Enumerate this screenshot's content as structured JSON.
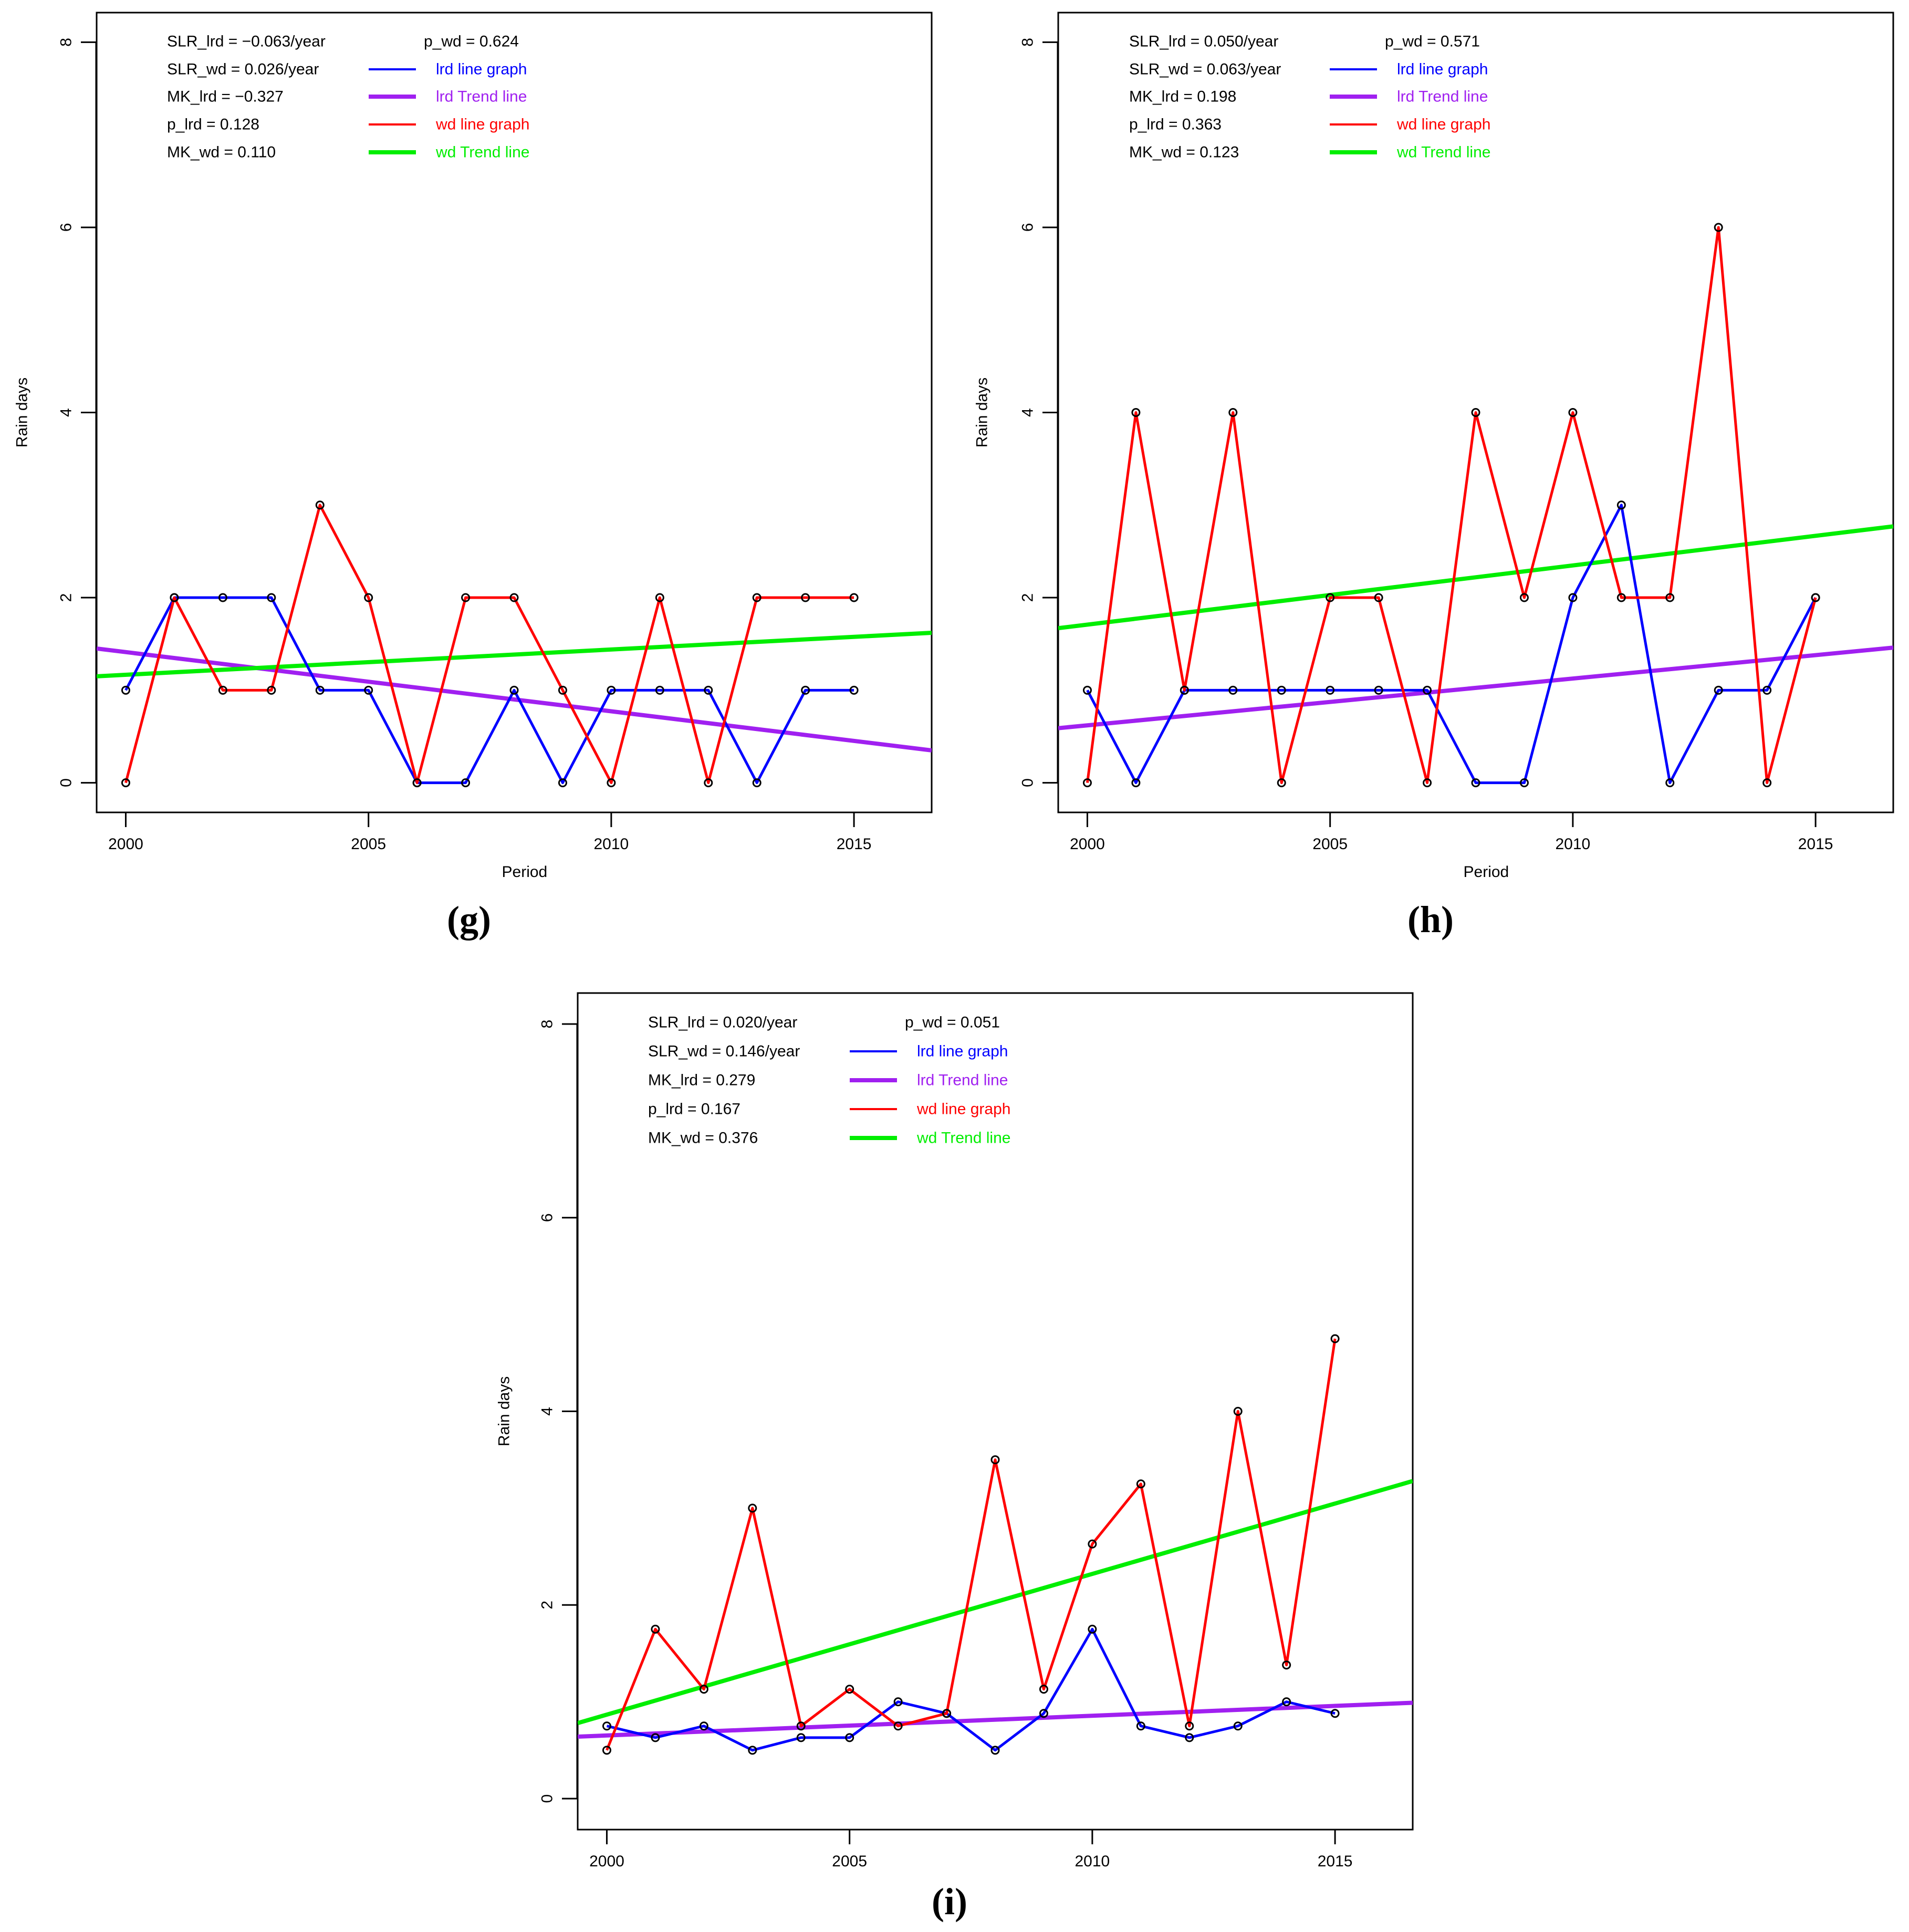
{
  "colors": {
    "lrd_line": "#0000ff",
    "lrd_trend": "#a020f0",
    "wd_line": "#ff0000",
    "wd_trend": "#00ee00",
    "text": "#000000",
    "marker": "#000000"
  },
  "chart_data": [
    {
      "type": "line",
      "panel_label": "(g)",
      "title": "",
      "xlabel": "Period",
      "ylabel": "Rain days",
      "xlim": [
        1999.4,
        2016.6
      ],
      "ylim": [
        -0.32,
        8.32
      ],
      "x_ticks": [
        2000,
        2005,
        2010,
        2015
      ],
      "y_ticks": [
        0,
        2,
        4,
        6,
        8
      ],
      "x": [
        2000,
        2001,
        2002,
        2003,
        2004,
        2005,
        2006,
        2007,
        2008,
        2009,
        2010,
        2011,
        2012,
        2013,
        2014,
        2015
      ],
      "series": [
        {
          "name": "lrd line graph",
          "color_key": "lrd_line",
          "values": [
            1,
            2,
            2,
            2,
            1,
            1,
            0,
            0,
            1,
            0,
            1,
            1,
            1,
            0,
            1,
            1
          ]
        },
        {
          "name": "wd line graph",
          "color_key": "wd_line",
          "values": [
            0,
            2,
            1,
            1,
            3,
            2,
            0,
            2,
            2,
            1,
            0,
            2,
            0,
            2,
            2,
            2
          ]
        }
      ],
      "trend_lines": [
        {
          "name": "lrd Trend line",
          "color_key": "lrd_trend",
          "points": [
            [
              1999.4,
              1.45
            ],
            [
              2016.6,
              0.35
            ]
          ]
        },
        {
          "name": "wd Trend line",
          "color_key": "wd_trend",
          "points": [
            [
              1999.4,
              1.15
            ],
            [
              2016.6,
              1.62
            ]
          ]
        }
      ],
      "stats": [
        "SLR_lrd = −0.063/year",
        "SLR_wd = 0.026/year",
        "MK_lrd = −0.327",
        "p_lrd = 0.128",
        "MK_wd = 0.110"
      ],
      "stats_right": "p_wd = 0.624",
      "legend": [
        {
          "label": "lrd line graph",
          "color_key": "lrd_line",
          "thick": false
        },
        {
          "label": "lrd Trend line",
          "color_key": "lrd_trend",
          "thick": true
        },
        {
          "label": "wd line graph",
          "color_key": "wd_line",
          "thick": false
        },
        {
          "label": "wd Trend line",
          "color_key": "wd_trend",
          "thick": true
        }
      ],
      "legend_position": "top-left"
    },
    {
      "type": "line",
      "panel_label": "(h)",
      "title": "",
      "xlabel": "Period",
      "ylabel": "Rain days",
      "xlim": [
        1999.4,
        2016.6
      ],
      "ylim": [
        -0.32,
        8.32
      ],
      "x_ticks": [
        2000,
        2005,
        2010,
        2015
      ],
      "y_ticks": [
        0,
        2,
        4,
        6,
        8
      ],
      "x": [
        2000,
        2001,
        2002,
        2003,
        2004,
        2005,
        2006,
        2007,
        2008,
        2009,
        2010,
        2011,
        2012,
        2013,
        2014,
        2015
      ],
      "series": [
        {
          "name": "lrd line graph",
          "color_key": "lrd_line",
          "values": [
            1,
            0,
            1,
            1,
            1,
            1,
            1,
            1,
            0,
            0,
            2,
            3,
            0,
            1,
            1,
            2
          ]
        },
        {
          "name": "wd line graph",
          "color_key": "wd_line",
          "values": [
            0,
            4,
            1,
            4,
            0,
            2,
            2,
            0,
            4,
            2,
            4,
            2,
            2,
            6,
            0,
            2
          ]
        }
      ],
      "trend_lines": [
        {
          "name": "lrd Trend line",
          "color_key": "lrd_trend",
          "points": [
            [
              1999.4,
              0.59
            ],
            [
              2016.6,
              1.46
            ]
          ]
        },
        {
          "name": "wd Trend line",
          "color_key": "wd_trend",
          "points": [
            [
              1999.4,
              1.67
            ],
            [
              2016.6,
              2.77
            ]
          ]
        }
      ],
      "stats": [
        "SLR_lrd = 0.050/year",
        "SLR_wd = 0.063/year",
        "MK_lrd = 0.198",
        "p_lrd = 0.363",
        "MK_wd = 0.123"
      ],
      "stats_right": "p_wd = 0.571",
      "legend": [
        {
          "label": "lrd line graph",
          "color_key": "lrd_line",
          "thick": false
        },
        {
          "label": "lrd Trend line",
          "color_key": "lrd_trend",
          "thick": true
        },
        {
          "label": "wd line graph",
          "color_key": "wd_line",
          "thick": false
        },
        {
          "label": "wd Trend line",
          "color_key": "wd_trend",
          "thick": true
        }
      ],
      "legend_position": "top-left"
    },
    {
      "type": "line",
      "panel_label": "(i)",
      "title": "",
      "xlabel": "",
      "ylabel": "Rain days",
      "xlim": [
        1999.4,
        2016.6
      ],
      "ylim": [
        -0.32,
        8.32
      ],
      "x_ticks": [
        2000,
        2005,
        2010,
        2015
      ],
      "y_ticks": [
        0,
        2,
        4,
        6,
        8
      ],
      "x": [
        2000,
        2001,
        2002,
        2003,
        2004,
        2005,
        2006,
        2007,
        2008,
        2009,
        2010,
        2011,
        2012,
        2013,
        2014,
        2015
      ],
      "series": [
        {
          "name": "lrd line graph",
          "color_key": "lrd_line",
          "values": [
            0.75,
            0.63,
            0.75,
            0.5,
            0.63,
            0.63,
            1.0,
            0.88,
            0.5,
            0.88,
            1.75,
            0.75,
            0.63,
            0.75,
            1.0,
            0.88
          ]
        },
        {
          "name": "wd line graph",
          "color_key": "wd_line",
          "values": [
            0.5,
            1.75,
            1.13,
            3.0,
            0.75,
            1.13,
            0.75,
            0.88,
            3.5,
            1.13,
            2.63,
            3.25,
            0.75,
            4.0,
            1.38,
            4.75
          ]
        }
      ],
      "trend_lines": [
        {
          "name": "lrd Trend line",
          "color_key": "lrd_trend",
          "points": [
            [
              1999.4,
              0.64
            ],
            [
              2016.6,
              0.99
            ]
          ]
        },
        {
          "name": "wd Trend line",
          "color_key": "wd_trend",
          "points": [
            [
              1999.4,
              0.78
            ],
            [
              2016.6,
              3.28
            ]
          ]
        }
      ],
      "stats": [
        "SLR_lrd = 0.020/year",
        "SLR_wd = 0.146/year",
        "MK_lrd = 0.279",
        "p_lrd = 0.167",
        "MK_wd = 0.376"
      ],
      "stats_right": "p_wd = 0.051",
      "legend": [
        {
          "label": "lrd line graph",
          "color_key": "lrd_line",
          "thick": false
        },
        {
          "label": "lrd Trend line",
          "color_key": "lrd_trend",
          "thick": true
        },
        {
          "label": "wd line graph",
          "color_key": "wd_line",
          "thick": false
        },
        {
          "label": "wd Trend line",
          "color_key": "wd_trend",
          "thick": true
        }
      ],
      "legend_position": "top-left"
    }
  ]
}
